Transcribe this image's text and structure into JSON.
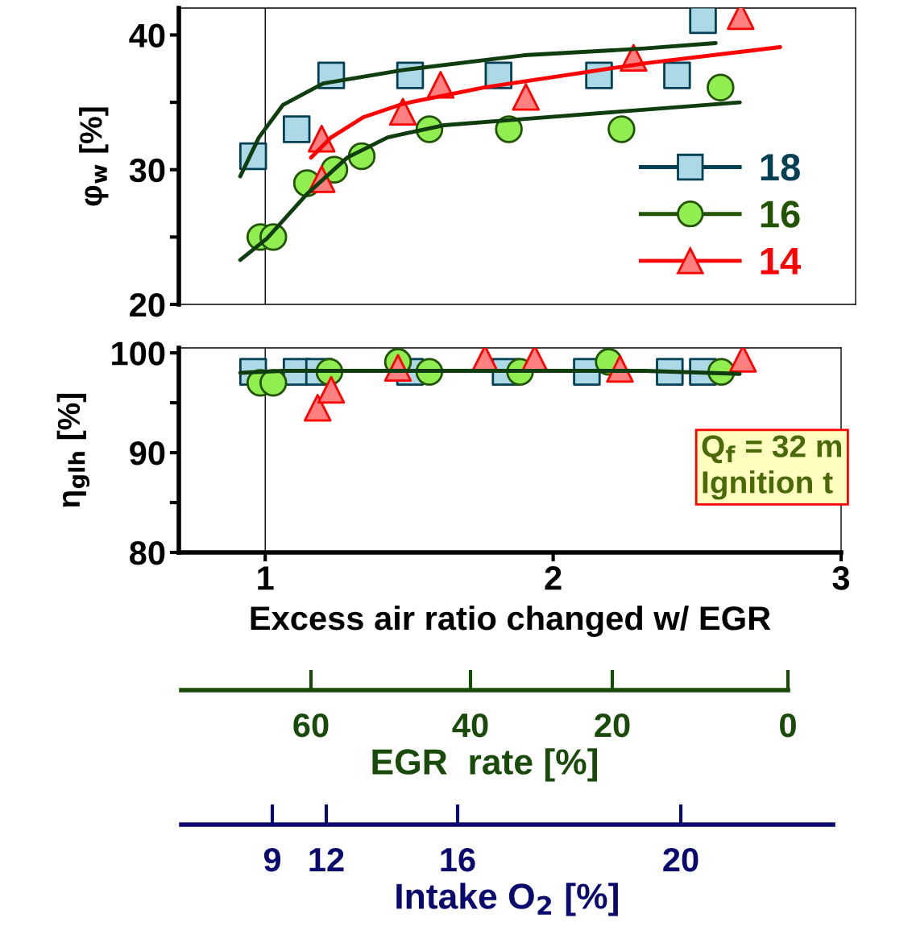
{
  "chart_data": [
    {
      "type": "scatter",
      "ylabel": "φ$_{w}$ [%]",
      "xlim": [
        0.7,
        3.05
      ],
      "ylim": [
        20,
        42
      ],
      "yticks": [
        20,
        {
          "value": 25,
          "label": null
        },
        30,
        {
          "value": 35,
          "label": null
        },
        40
      ],
      "xticks": [
        1,
        2,
        3
      ],
      "tick_labels": "y",
      "legend": "lower right",
      "grid": false,
      "ref_lines": [
        {
          "axis": "x",
          "value": 1,
          "color": "#000000"
        }
      ],
      "series": [
        {
          "name": "18",
          "marker": "square",
          "color": "#add8e6",
          "x": [
            0.958,
            1.109,
            1.229,
            1.503,
            1.81,
            2.159,
            2.43,
            2.52
          ],
          "values": [
            31.0,
            33.0,
            37.0,
            37.0,
            37.0,
            37.0,
            37.0,
            41.1
          ]
        },
        {
          "name": "16",
          "marker": "circle",
          "color": "#90ee50",
          "x": [
            0.983,
            1.028,
            1.145,
            1.24,
            1.335,
            1.57,
            1.846,
            2.237,
            2.581
          ],
          "values": [
            25.0,
            25.0,
            29.0,
            30.0,
            31.0,
            33.0,
            33.0,
            33.0,
            36.1
          ]
        },
        {
          "name": "14",
          "marker": "triangle",
          "color": "#ff8080",
          "x": [
            1.196,
            1.196,
            1.478,
            1.609,
            1.905,
            2.279,
            2.651
          ],
          "values": [
            32.3,
            29.3,
            34.3,
            36.3,
            35.4,
            38.3,
            41.4
          ]
        },
        {
          "type": "line",
          "color": "#0f3d0f",
          "x": [
            0.913,
            0.978,
            1.061,
            1.201,
            1.48,
            1.9,
            2.318,
            2.564
          ],
          "values": [
            29.5,
            32.4,
            34.8,
            36.4,
            37.4,
            38.5,
            39.0,
            39.4
          ]
        },
        {
          "type": "line",
          "color": "#ff0000",
          "x": [
            1.159,
            1.229,
            1.341,
            1.48,
            1.76,
            2.039,
            2.318,
            2.788
          ],
          "values": [
            30.9,
            32.4,
            33.9,
            34.9,
            36.1,
            37.0,
            37.9,
            39.1
          ]
        },
        {
          "type": "line",
          "color": "#0f3d0f",
          "x": [
            0.913,
            1.006,
            1.145,
            1.285,
            1.425,
            1.62,
            2.039,
            2.648
          ],
          "values": [
            23.3,
            24.9,
            28.2,
            30.9,
            32.4,
            33.3,
            34.0,
            35.0
          ]
        }
      ]
    },
    {
      "type": "scatter",
      "ylabel": "η$_{glh}$ [%]",
      "xlabel": "Excess air ratio changed w/ EGR",
      "xlim": [
        0.7,
        3.0
      ],
      "ylim": [
        80,
        100.5
      ],
      "xticks": [
        1,
        2,
        3
      ],
      "yticks": [
        80,
        {
          "value": 85,
          "label": null
        },
        90,
        {
          "value": 95,
          "label": null
        },
        100
      ],
      "grid": false,
      "ref_lines": [
        {
          "axis": "x",
          "value": 1,
          "color": "#000000"
        }
      ],
      "annotations": [
        "Q$_{f}$ = 32 m\nIgnition t"
      ],
      "series": [
        {
          "marker": "square",
          "color": "#add8e6",
          "x": [
            0.958,
            1.109,
            1.187,
            1.503,
            1.835,
            2.117,
            2.405,
            2.52
          ],
          "values": [
            98.1,
            98.1,
            98.1,
            98.1,
            98.1,
            98.1,
            98.1,
            98.1
          ]
        },
        {
          "marker": "circle",
          "color": "#90ee50",
          "x": [
            0.983,
            1.028,
            1.223,
            1.461,
            1.57,
            1.885,
            2.193,
            2.584
          ],
          "values": [
            97.0,
            97.0,
            98.1,
            99.1,
            98.1,
            98.1,
            99.1,
            98.1
          ]
        },
        {
          "marker": "triangle",
          "color": "#ff8080",
          "x": [
            1.182,
            1.229,
            1.461,
            1.763,
            1.936,
            2.232,
            2.659
          ],
          "values": [
            94.5,
            96.3,
            98.5,
            99.4,
            99.4,
            98.4,
            99.4
          ]
        },
        {
          "type": "line",
          "color": "#0f3d0f",
          "x": [
            0.913,
            1.061,
            1.341,
            1.76,
            2.318,
            2.648
          ],
          "values": [
            98.0,
            98.2,
            98.2,
            98.2,
            98.2,
            97.9
          ]
        }
      ]
    },
    {
      "type": "other",
      "xlabel": "EGR  rate [%]",
      "annotations": [
        "60",
        "40",
        "20",
        "0"
      ]
    },
    {
      "type": "other",
      "xlabel": "Intake O$_{2}$ [%]",
      "annotations": [
        "9",
        "12",
        "16",
        "20"
      ]
    }
  ]
}
